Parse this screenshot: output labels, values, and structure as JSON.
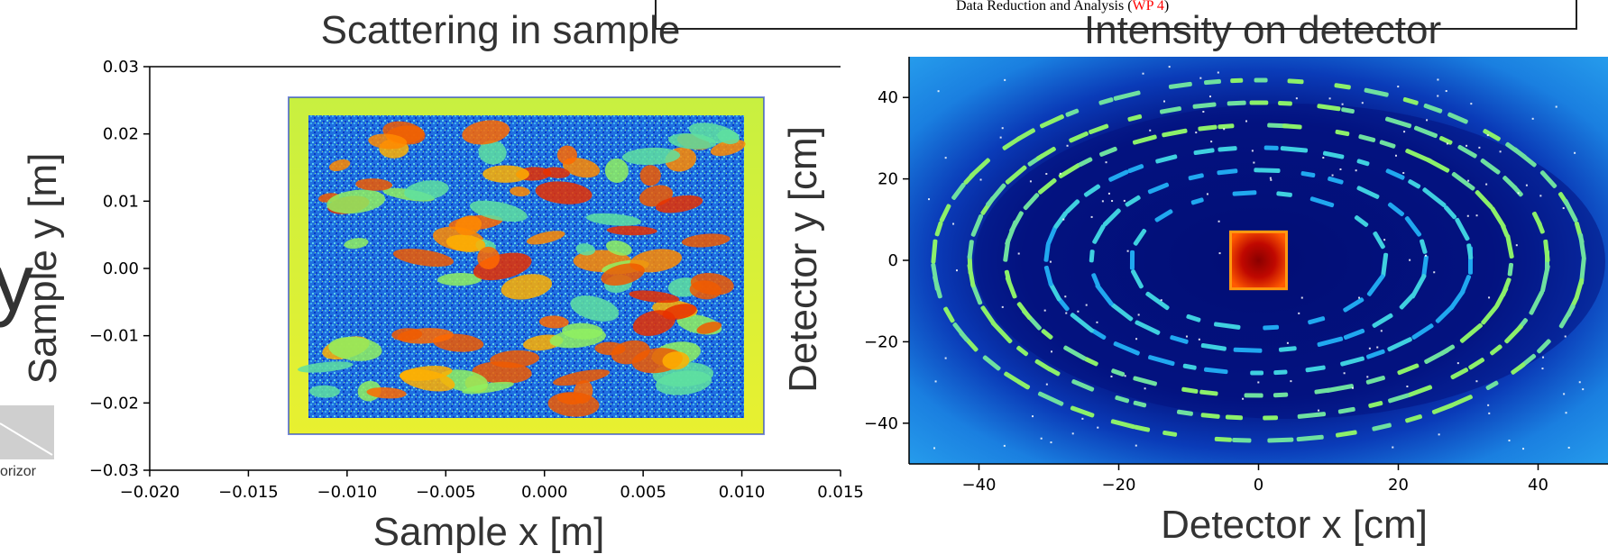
{
  "header_box": {
    "text_before": "Data Reduction and Analysis (",
    "link": "WP 4",
    "text_after": ")"
  },
  "left_fragment": {
    "glyph": "y",
    "caption": "orizor"
  },
  "colors": {
    "hot": "#d01000",
    "accent_link": "#ff0000"
  },
  "chart_data": [
    {
      "type": "heatmap",
      "title": "Scattering in sample",
      "xlabel": "Sample x [m]",
      "ylabel": "Sample y [m]",
      "xlim": [
        -0.02,
        0.015
      ],
      "ylim": [
        -0.03,
        0.03
      ],
      "xticks": [
        "−0.020",
        "−0.015",
        "−0.010",
        "−0.005",
        "0.000",
        "0.005",
        "0.010",
        "0.015"
      ],
      "yticks": [
        "0.03",
        "0.02",
        "0.01",
        "0.00",
        "−0.01",
        "−0.02",
        "−0.03"
      ],
      "sample_extent": {
        "x": [
          -0.0125,
          0.0125
        ],
        "y": [
          -0.025,
          0.025
        ]
      },
      "colormap": "jet"
    },
    {
      "type": "heatmap",
      "title": "Intensity on detector",
      "xlabel": "Detector x [cm]",
      "ylabel": "Detector y [cm]",
      "xlim": [
        -50,
        50
      ],
      "ylim": [
        -50,
        50
      ],
      "xticks": [
        "−40",
        "−20",
        "0",
        "20",
        "40"
      ],
      "yticks": [
        "40",
        "20",
        "0",
        "−20",
        "−40"
      ],
      "beamstop": {
        "x": [
          -4,
          4
        ],
        "y": [
          -7,
          7
        ]
      },
      "colormap": "jet"
    }
  ]
}
